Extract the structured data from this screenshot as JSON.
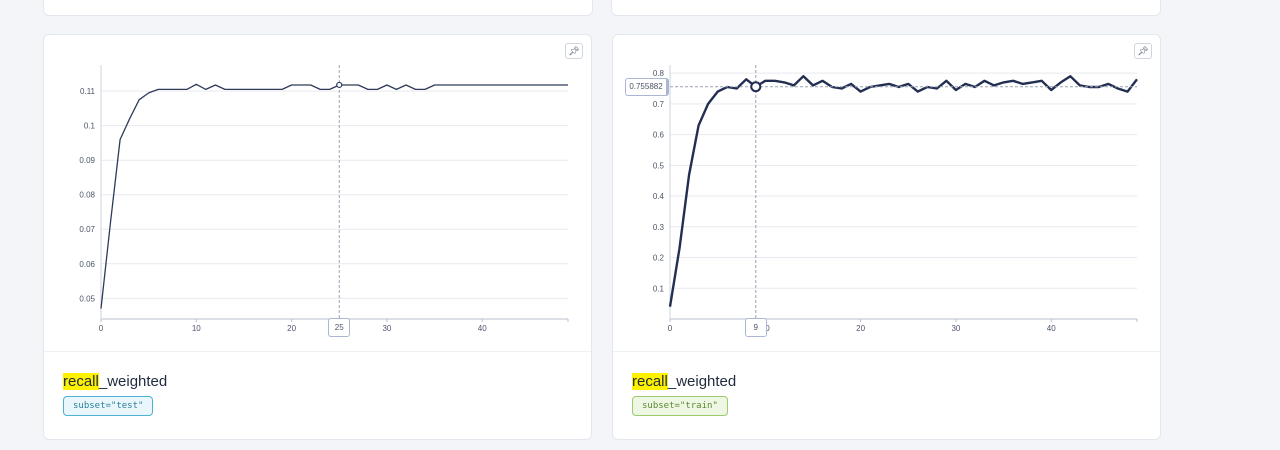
{
  "cards": [
    {
      "metric_prefix": "recall",
      "metric_suffix": "_weighted",
      "tag": "subset=\"test\"",
      "hover_x_label": "25",
      "chart_data": {
        "type": "line",
        "xlim": [
          0,
          49
        ],
        "ylim": [
          0.044,
          0.117
        ],
        "x_ticks": [
          0,
          10,
          20,
          30,
          40
        ],
        "y_ticks": [
          0.05,
          0.06,
          0.07,
          0.08,
          0.09,
          0.1,
          0.11
        ],
        "grid": true,
        "line_color": "#2e3a59",
        "hover_x": 25,
        "hover_y": 0.1118,
        "series": [
          {
            "x": [
              0,
              1,
              2,
              3,
              4,
              5,
              6,
              7,
              8,
              9,
              10,
              11,
              12,
              13,
              14,
              15,
              16,
              17,
              18,
              19,
              20,
              21,
              22,
              23,
              24,
              25,
              26,
              27,
              28,
              29,
              30,
              31,
              32,
              33,
              34,
              35,
              36,
              37,
              38,
              39,
              40,
              41,
              42,
              43,
              44,
              45,
              46,
              47,
              48,
              49
            ],
            "values": [
              0.047,
              0.072,
              0.096,
              0.102,
              0.1075,
              0.1095,
              0.1105,
              0.1105,
              0.1105,
              0.1105,
              0.112,
              0.1105,
              0.1118,
              0.1105,
              0.1105,
              0.1105,
              0.1105,
              0.1105,
              0.1105,
              0.1105,
              0.1118,
              0.1118,
              0.1118,
              0.1105,
              0.1105,
              0.1118,
              0.1118,
              0.1118,
              0.1105,
              0.1105,
              0.1118,
              0.1105,
              0.1118,
              0.1105,
              0.1105,
              0.1118,
              0.1118,
              0.1118,
              0.1118,
              0.1118,
              0.1118,
              0.1118,
              0.1118,
              0.1118,
              0.1118,
              0.1118,
              0.1118,
              0.1118,
              0.1118,
              0.1118
            ]
          }
        ]
      }
    },
    {
      "metric_prefix": "recall",
      "metric_suffix": "_weighted",
      "tag": "subset=\"train\"",
      "hover_x_label": "9",
      "hover_y_label": "0.755882",
      "chart_data": {
        "type": "line",
        "xlim": [
          0,
          49
        ],
        "ylim": [
          0.0,
          0.82
        ],
        "x_ticks": [
          0,
          10,
          20,
          30,
          40
        ],
        "y_ticks": [
          0.1,
          0.2,
          0.3,
          0.4,
          0.5,
          0.6,
          0.7,
          0.8
        ],
        "grid": true,
        "line_color": "#232f52",
        "hover_x": 9,
        "hover_y": 0.755882,
        "series": [
          {
            "x": [
              0,
              1,
              2,
              3,
              4,
              5,
              6,
              7,
              8,
              9,
              10,
              11,
              12,
              13,
              14,
              15,
              16,
              17,
              18,
              19,
              20,
              21,
              22,
              23,
              24,
              25,
              26,
              27,
              28,
              29,
              30,
              31,
              32,
              33,
              34,
              35,
              36,
              37,
              38,
              39,
              40,
              41,
              42,
              43,
              44,
              45,
              46,
              47,
              48,
              49
            ],
            "values": [
              0.04,
              0.23,
              0.47,
              0.63,
              0.7,
              0.74,
              0.755,
              0.75,
              0.78,
              0.755882,
              0.775,
              0.775,
              0.77,
              0.76,
              0.79,
              0.76,
              0.775,
              0.755,
              0.75,
              0.765,
              0.74,
              0.755,
              0.76,
              0.765,
              0.755,
              0.765,
              0.74,
              0.755,
              0.75,
              0.775,
              0.745,
              0.765,
              0.755,
              0.775,
              0.76,
              0.77,
              0.775,
              0.765,
              0.77,
              0.775,
              0.745,
              0.77,
              0.79,
              0.76,
              0.755,
              0.755,
              0.765,
              0.75,
              0.74,
              0.78
            ]
          }
        ]
      }
    }
  ]
}
